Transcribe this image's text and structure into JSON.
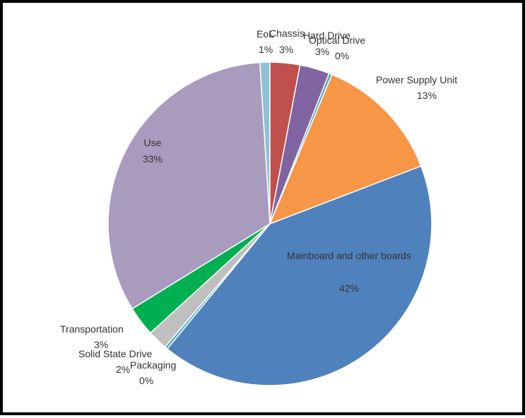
{
  "chart_data": {
    "type": "pie",
    "title": "",
    "slices": [
      {
        "name": "EoL",
        "value": 1,
        "pct_label": "1%",
        "color": "#8fc1d4"
      },
      {
        "name": "Chassis",
        "value": 3,
        "pct_label": "3%",
        "color": "#c0504d"
      },
      {
        "name": "Hard Drive",
        "value": 3,
        "pct_label": "3%",
        "color": "#8064a2"
      },
      {
        "name": "Optical Drive",
        "value": 0,
        "pct_label": "0%",
        "color": "#4bacc6"
      },
      {
        "name": "Power Supply Unit",
        "value": 13,
        "pct_label": "13%",
        "color": "#f79646"
      },
      {
        "name": "Mainboard and other boards",
        "value": 42,
        "pct_label": "42%",
        "color": "#4f81bd"
      },
      {
        "name": "Packaging",
        "value": 0,
        "pct_label": "0%",
        "color": "#4bacc6"
      },
      {
        "name": "Solid State Drive",
        "value": 2,
        "pct_label": "2%",
        "color": "#bfbfbf"
      },
      {
        "name": "Transportation",
        "value": 3,
        "pct_label": "3%",
        "color": "#00b050"
      },
      {
        "name": "Use",
        "value": 33,
        "pct_label": "33%",
        "color": "#a99bbd"
      }
    ]
  }
}
